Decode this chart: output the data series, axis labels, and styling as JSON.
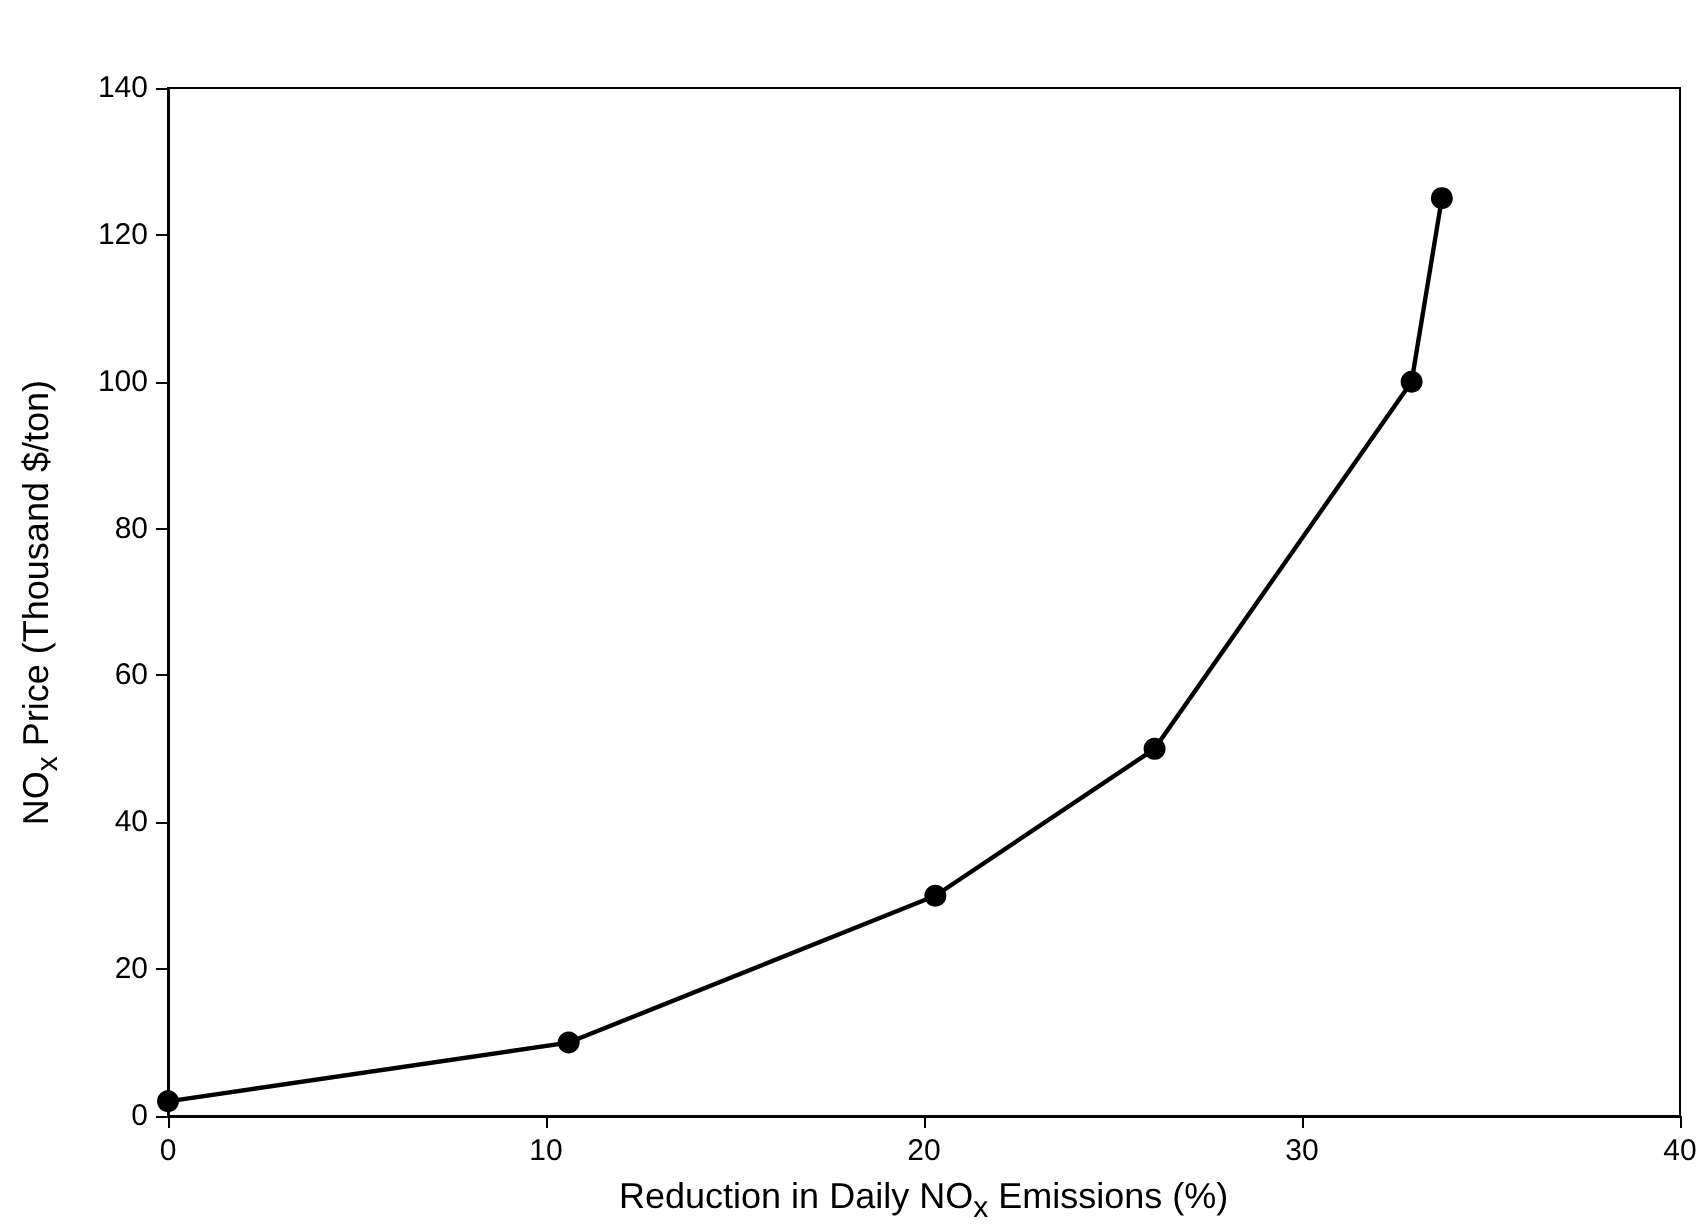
{
  "chart_data": {
    "type": "line",
    "xlabel": "Reduction in Daily NO$_{x}$ Emissions (%)",
    "ylabel": "NO$_{x}$ Price (Thousand $/ton)",
    "x": [
      0,
      10.6,
      20.3,
      26.1,
      32.9,
      33.7
    ],
    "series": [
      {
        "color": "#000000",
        "values": [
          2,
          10,
          30,
          50,
          100,
          125
        ]
      }
    ],
    "xlim": [
      0,
      40
    ],
    "xticks": [
      0,
      10,
      20,
      30,
      40
    ],
    "ylim": [
      0,
      140
    ],
    "yticks": [
      0,
      20,
      40,
      60,
      80,
      100,
      120,
      140
    ],
    "grid": false,
    "marker": "circle",
    "line_style": "solid"
  }
}
